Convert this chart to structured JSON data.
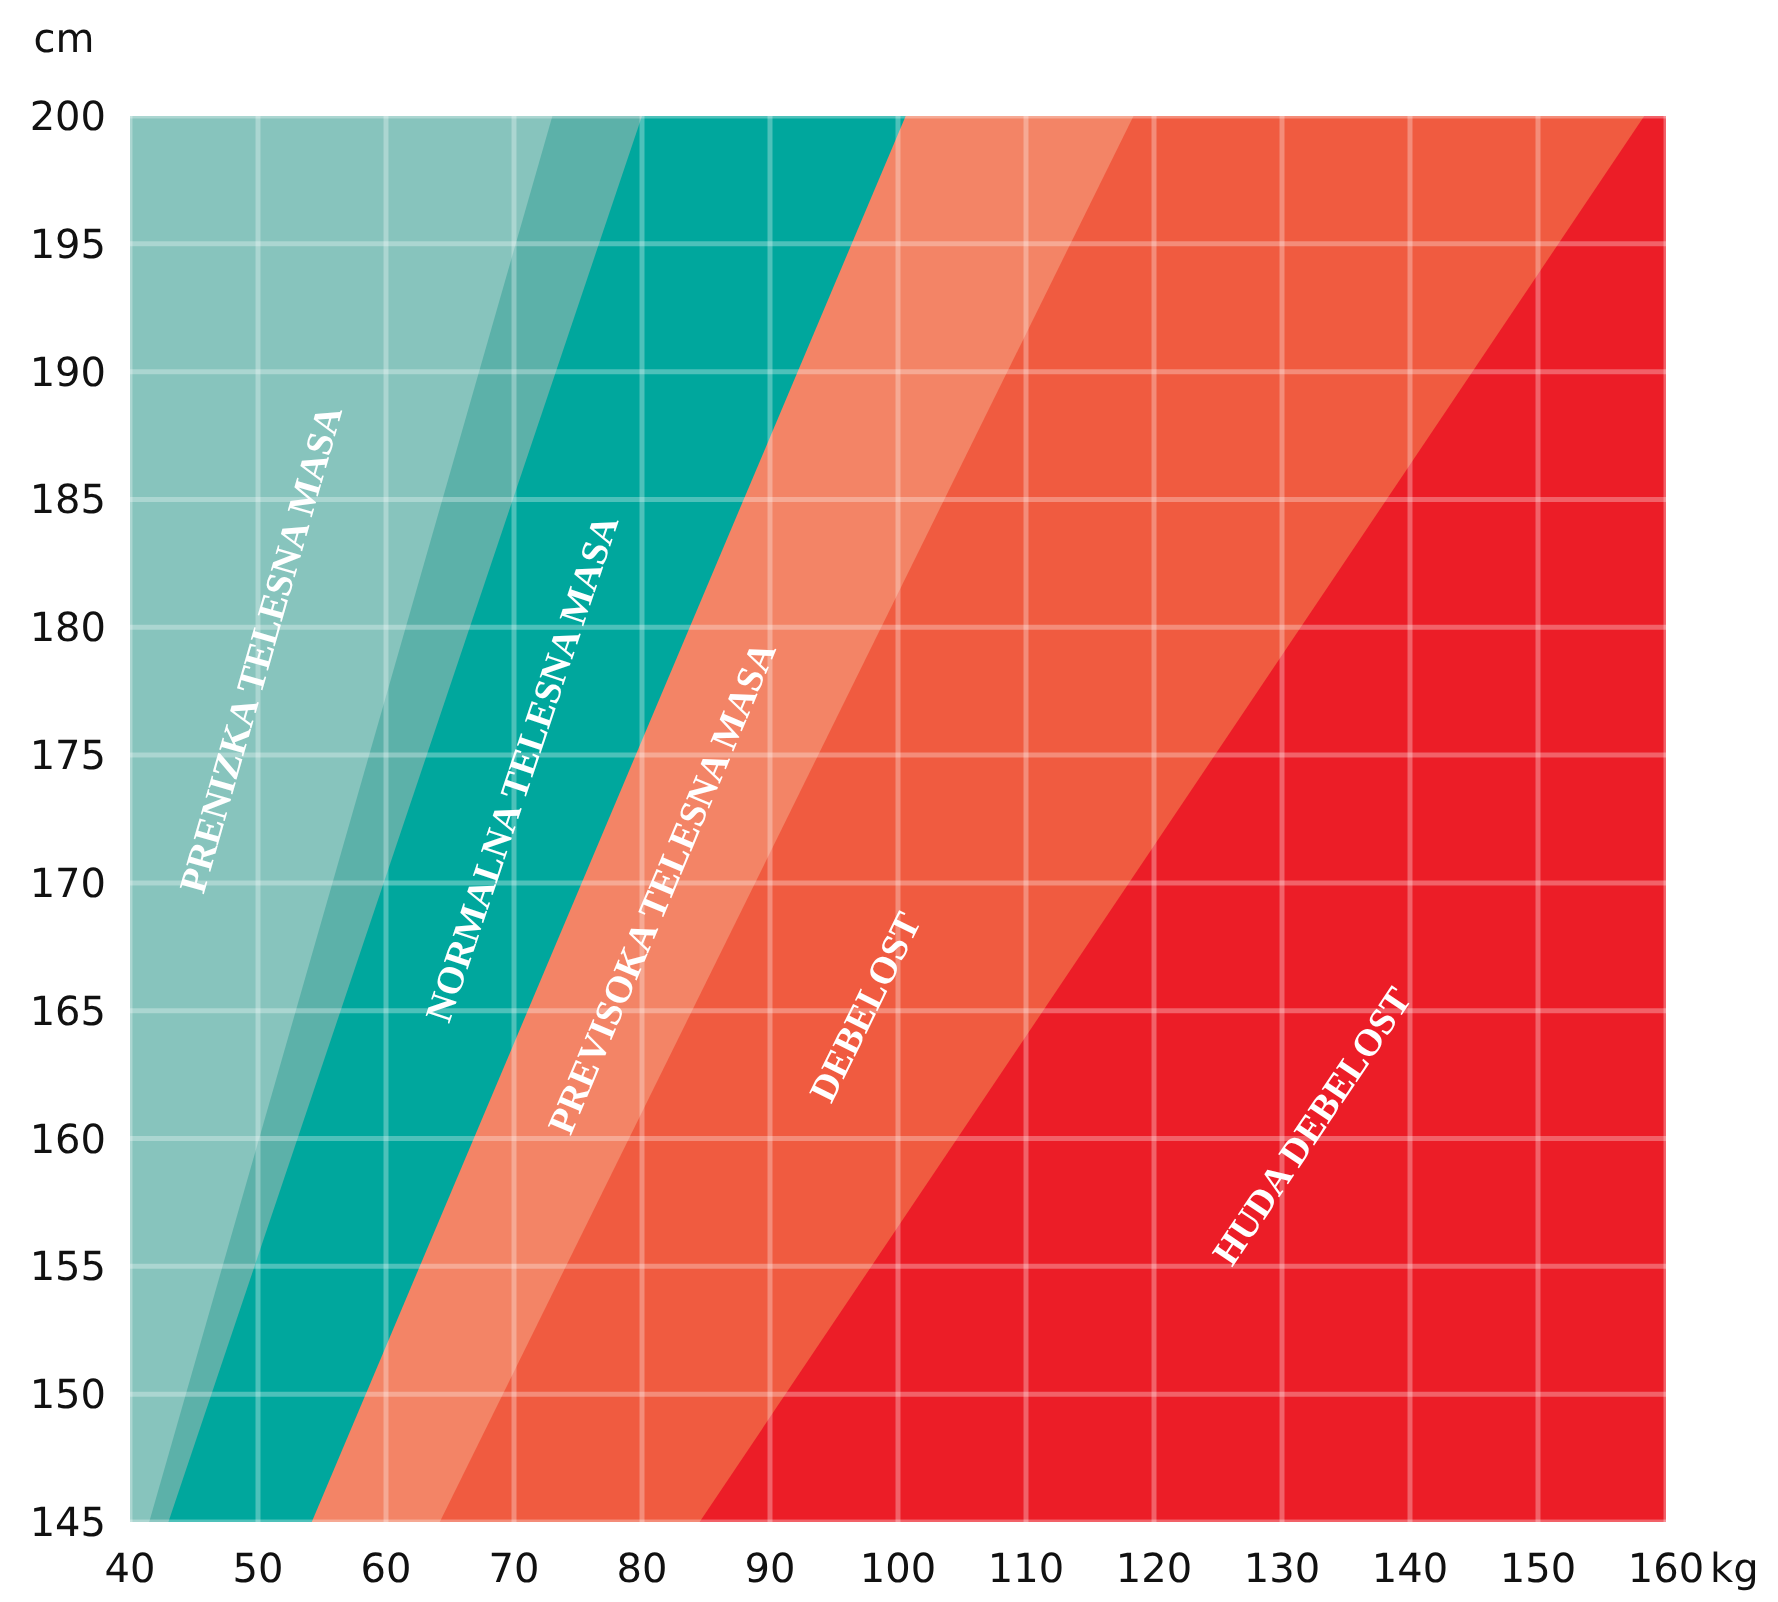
{
  "chart_data": {
    "type": "area",
    "xlabel": "kg",
    "ylabel": "cm",
    "xlim": [
      40,
      160
    ],
    "ylim": [
      145,
      200
    ],
    "xticks": [
      40,
      50,
      60,
      70,
      80,
      90,
      100,
      110,
      120,
      130,
      140,
      150,
      160
    ],
    "yticks": [
      145,
      150,
      155,
      160,
      165,
      170,
      175,
      180,
      185,
      190,
      195,
      200
    ],
    "grid": true,
    "series": [
      {
        "name": "PRENIZKA TELESNA MASA",
        "color": "#87c4bd",
        "x": [
          40,
          160
        ],
        "values": [
          200,
          200
        ]
      },
      {
        "color": "#5cb1a9",
        "x": [
          41.5,
          73,
          160
        ],
        "values": [
          145,
          200,
          200
        ]
      },
      {
        "name": "NORMALNA TELESNA MASA",
        "color": "#00a79d",
        "x": [
          43,
          80,
          160
        ],
        "values": [
          145,
          200,
          200
        ]
      },
      {
        "name": "PREVISOKA TELESNA MASA",
        "color": "#f38466",
        "x": [
          54.2,
          100.6,
          160
        ],
        "values": [
          145,
          200,
          200
        ]
      },
      {
        "name": "DEBELOST",
        "color": "#f05b40",
        "x": [
          64.2,
          118.4,
          160
        ],
        "values": [
          145,
          200,
          200
        ]
      },
      {
        "name": "HUDA DEBELOST",
        "color": "#ec1d27",
        "x": [
          84.5,
          158.3,
          160
        ],
        "values": [
          145,
          200,
          200
        ]
      }
    ]
  }
}
